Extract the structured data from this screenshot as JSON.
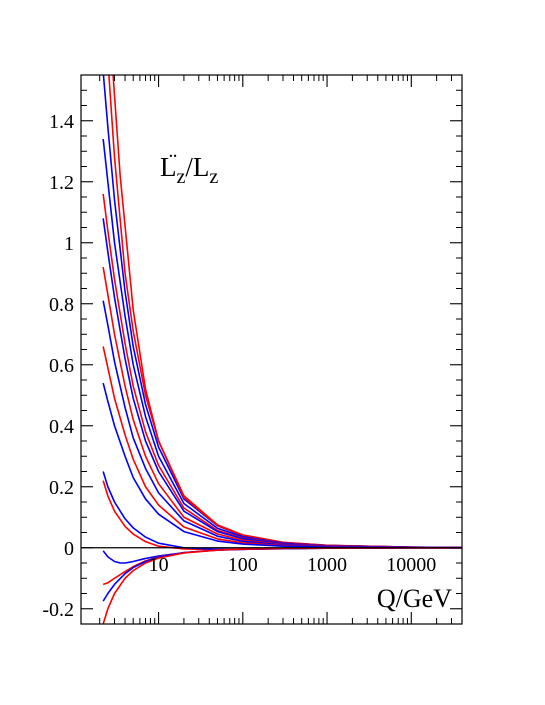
{
  "chart_data": {
    "type": "line",
    "title": "",
    "annotation": {
      "main": "L",
      "dots": "¨",
      "sub1": "z",
      "slash": "/L",
      "sub2": "z"
    },
    "xlabel": "Q/GeV",
    "ylabel": "",
    "x_scale": "log",
    "xlim": [
      1.2,
      40000
    ],
    "ylim": [
      -0.25,
      1.55
    ],
    "x_ticks": [
      {
        "value": 10,
        "label": "10"
      },
      {
        "value": 100,
        "label": "100"
      },
      {
        "value": 1000,
        "label": "1000"
      },
      {
        "value": 10000,
        "label": "10000"
      }
    ],
    "y_ticks": [
      {
        "value": -0.2,
        "label": "-0.2"
      },
      {
        "value": 0,
        "label": "0"
      },
      {
        "value": 0.2,
        "label": "0.2"
      },
      {
        "value": 0.4,
        "label": "0.4"
      },
      {
        "value": 0.6,
        "label": "0.6"
      },
      {
        "value": 0.8,
        "label": "0.8"
      },
      {
        "value": 1,
        "label": "1"
      },
      {
        "value": 1.2,
        "label": "1.2"
      },
      {
        "value": 1.4,
        "label": "1.4"
      }
    ],
    "grid": false,
    "zero_line": true,
    "colors": {
      "red": "#ff0000",
      "blue": "#0000ff",
      "axis": "#000000"
    },
    "series": [
      {
        "color": "red",
        "x": [
          2.8,
          3.5,
          5,
          7,
          10,
          20,
          50,
          100,
          300,
          1000,
          10000,
          40000
        ],
        "y": [
          1.6,
          1.22,
          0.78,
          0.52,
          0.35,
          0.17,
          0.075,
          0.042,
          0.018,
          0.008,
          0.002,
          0.0008
        ]
      },
      {
        "color": "blue",
        "x": [
          2.2,
          2.5,
          3,
          4,
          5,
          7,
          10,
          20,
          50,
          100,
          300,
          1000,
          10000,
          40000
        ],
        "y": [
          1.56,
          1.38,
          1.14,
          0.84,
          0.66,
          0.47,
          0.33,
          0.16,
          0.072,
          0.04,
          0.017,
          0.0075,
          0.0018,
          0.0007
        ]
      },
      {
        "color": "red",
        "x": [
          2.5,
          3,
          4,
          5,
          7,
          10,
          20,
          50,
          100,
          300,
          1000,
          10000,
          40000
        ],
        "y": [
          1.6,
          1.28,
          0.9,
          0.71,
          0.5,
          0.35,
          0.165,
          0.073,
          0.041,
          0.017,
          0.0075,
          0.0018,
          0.0007
        ]
      },
      {
        "color": "blue",
        "x": [
          2.2,
          2.5,
          3,
          4,
          5,
          7,
          10,
          20,
          50,
          100,
          300,
          1000,
          10000,
          40000
        ],
        "y": [
          1.34,
          1.2,
          1.0,
          0.76,
          0.6,
          0.43,
          0.3,
          0.145,
          0.064,
          0.036,
          0.015,
          0.0065,
          0.0016,
          0.0006
        ]
      },
      {
        "color": "red",
        "x": [
          2.2,
          2.5,
          3,
          4,
          5,
          7,
          10,
          20,
          50,
          100,
          300,
          1000,
          10000,
          40000
        ],
        "y": [
          1.16,
          1.04,
          0.88,
          0.67,
          0.53,
          0.38,
          0.27,
          0.13,
          0.057,
          0.032,
          0.013,
          0.0058,
          0.0014,
          0.0005
        ]
      },
      {
        "color": "blue",
        "x": [
          2.2,
          2.5,
          3,
          4,
          5,
          7,
          10,
          20,
          50,
          100,
          300,
          1000,
          10000,
          40000
        ],
        "y": [
          1.08,
          0.97,
          0.82,
          0.62,
          0.49,
          0.35,
          0.25,
          0.12,
          0.053,
          0.03,
          0.012,
          0.0053,
          0.0013,
          0.0005
        ]
      },
      {
        "color": "red",
        "x": [
          2.2,
          2.5,
          3,
          4,
          5,
          7,
          10,
          20,
          50,
          100,
          300,
          1000,
          10000,
          40000
        ],
        "y": [
          0.92,
          0.83,
          0.7,
          0.53,
          0.42,
          0.3,
          0.21,
          0.1,
          0.045,
          0.025,
          0.01,
          0.0045,
          0.0011,
          0.0004
        ]
      },
      {
        "color": "blue",
        "x": [
          2.2,
          2.5,
          3,
          4,
          5,
          7,
          10,
          20,
          50,
          100,
          300,
          1000,
          10000,
          40000
        ],
        "y": [
          0.81,
          0.73,
          0.61,
          0.46,
          0.36,
          0.26,
          0.18,
          0.088,
          0.038,
          0.021,
          0.0088,
          0.0039,
          0.0009,
          0.0004
        ]
      },
      {
        "color": "red",
        "x": [
          2.2,
          2.5,
          3,
          4,
          5,
          7,
          10,
          20,
          50,
          100,
          300,
          1000,
          10000,
          40000
        ],
        "y": [
          0.66,
          0.59,
          0.49,
          0.37,
          0.29,
          0.2,
          0.14,
          0.068,
          0.029,
          0.016,
          0.0067,
          0.003,
          0.0007,
          0.0003
        ]
      },
      {
        "color": "blue",
        "x": [
          2.2,
          2.5,
          3,
          4,
          5,
          7,
          10,
          20,
          50,
          100,
          300,
          1000,
          10000,
          40000
        ],
        "y": [
          0.54,
          0.48,
          0.4,
          0.3,
          0.23,
          0.16,
          0.11,
          0.053,
          0.022,
          0.012,
          0.005,
          0.0022,
          0.0005,
          0.0002
        ]
      },
      {
        "color": "red",
        "x": [
          2.2,
          2.5,
          3,
          4,
          5,
          7,
          10,
          20,
          50,
          100,
          300,
          1000,
          10000,
          40000
        ],
        "y": [
          0.22,
          0.17,
          0.12,
          0.07,
          0.045,
          0.02,
          0.005,
          -0.004,
          -0.006,
          -0.005,
          -0.003,
          -0.0015,
          -0.0004,
          -0.0002
        ]
      },
      {
        "color": "blue",
        "x": [
          2.2,
          2.5,
          3,
          4,
          5,
          7,
          10,
          20,
          50,
          100,
          300,
          1000,
          10000,
          40000
        ],
        "y": [
          0.25,
          0.2,
          0.15,
          0.095,
          0.065,
          0.035,
          0.015,
          0.0,
          -0.005,
          -0.005,
          -0.003,
          -0.0015,
          -0.0004,
          -0.0002
        ]
      },
      {
        "color": "blue",
        "x": [
          2.2,
          2.5,
          3,
          3.5,
          4,
          5,
          7,
          10,
          20,
          50,
          100,
          300,
          1000,
          10000,
          40000
        ],
        "y": [
          -0.01,
          -0.03,
          -0.045,
          -0.05,
          -0.05,
          -0.045,
          -0.035,
          -0.027,
          -0.016,
          -0.008,
          -0.005,
          -0.0025,
          -0.0012,
          -0.0003,
          -0.0001
        ]
      },
      {
        "color": "red",
        "x": [
          2.2,
          2.5,
          3,
          4,
          5,
          7,
          10,
          20,
          50,
          100,
          300,
          1000,
          10000,
          40000
        ],
        "y": [
          -0.12,
          -0.115,
          -0.1,
          -0.078,
          -0.062,
          -0.043,
          -0.03,
          -0.016,
          -0.007,
          -0.004,
          -0.002,
          -0.001,
          -0.0002,
          -0.0001
        ]
      },
      {
        "color": "blue",
        "x": [
          2.2,
          2.5,
          3,
          4,
          5,
          7,
          10,
          20,
          50,
          100,
          300,
          1000,
          10000,
          40000
        ],
        "y": [
          -0.175,
          -0.15,
          -0.12,
          -0.085,
          -0.065,
          -0.045,
          -0.031,
          -0.016,
          -0.007,
          -0.004,
          -0.002,
          -0.001,
          -0.0002,
          -0.0001
        ]
      },
      {
        "color": "red",
        "x": [
          2.2,
          2.5,
          3,
          4,
          5,
          7,
          10,
          20,
          50,
          100,
          300,
          1000,
          10000,
          40000
        ],
        "y": [
          -0.25,
          -0.2,
          -0.15,
          -0.1,
          -0.075,
          -0.05,
          -0.034,
          -0.017,
          -0.0075,
          -0.0042,
          -0.002,
          -0.001,
          -0.0002,
          -0.0001
        ]
      }
    ]
  }
}
